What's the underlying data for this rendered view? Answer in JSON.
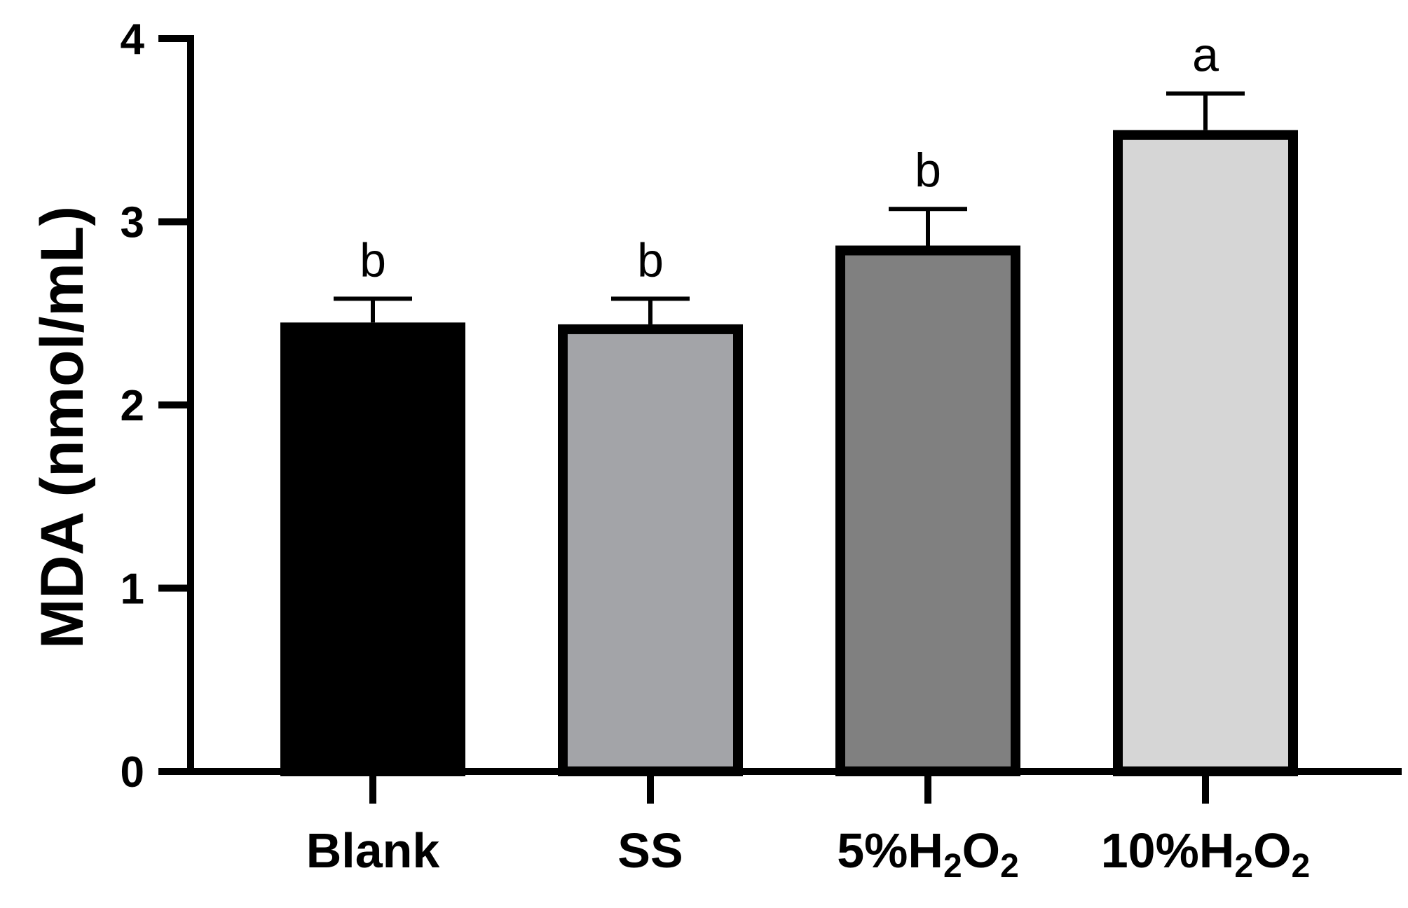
{
  "chart_data": {
    "type": "bar",
    "title": "",
    "xlabel": "",
    "ylabel": "MDA (nmol/mL)",
    "ylim": [
      0,
      4
    ],
    "yticks": [
      0,
      1,
      2,
      3,
      4
    ],
    "ytick_labels": [
      "0",
      "1",
      "2",
      "3",
      "4"
    ],
    "grid": false,
    "categories": [
      {
        "name": "Blank",
        "parts": [
          {
            "text": "Blank",
            "sub": false
          }
        ]
      },
      {
        "name": "SS",
        "parts": [
          {
            "text": "SS",
            "sub": false
          }
        ]
      },
      {
        "name": "5%H2O2",
        "parts": [
          {
            "text": "5%H",
            "sub": false
          },
          {
            "text": "2",
            "sub": true
          },
          {
            "text": "O",
            "sub": false
          },
          {
            "text": "2",
            "sub": true
          }
        ]
      },
      {
        "name": "10%H2O2",
        "parts": [
          {
            "text": "10%H",
            "sub": false
          },
          {
            "text": "2",
            "sub": true
          },
          {
            "text": "O",
            "sub": false
          },
          {
            "text": "2",
            "sub": true
          }
        ]
      }
    ],
    "values": [
      2.45,
      2.44,
      2.87,
      3.5
    ],
    "errors": [
      0.13,
      0.14,
      0.2,
      0.2
    ],
    "significance": [
      "b",
      "b",
      "b",
      "a"
    ],
    "colors": [
      "#000000",
      "#a3a4a8",
      "#808080",
      "#d6d6d6"
    ],
    "edge_color": "#000000"
  }
}
